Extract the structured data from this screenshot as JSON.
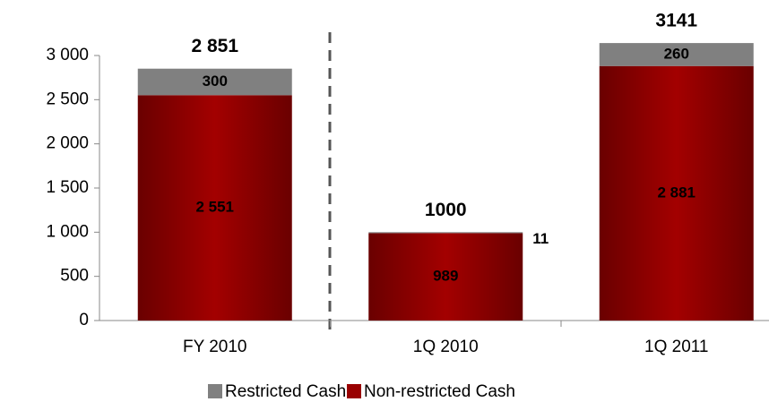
{
  "chart_data": {
    "type": "stacked_bar",
    "categories": [
      "FY 2010",
      "1Q 2010",
      "1Q 2011"
    ],
    "series": [
      {
        "name": "Restricted Cash",
        "color": "#808080",
        "values": [
          300,
          11,
          260
        ]
      },
      {
        "name": "Non-restricted Cash",
        "color": "#990000",
        "values": [
          2551,
          989,
          2881
        ],
        "value_labels": [
          "2 551",
          "989",
          "2 881"
        ]
      }
    ],
    "total_labels": [
      "2 851",
      "1000",
      "3141"
    ],
    "ylim": [
      0,
      3000
    ],
    "yticks": [
      0,
      500,
      {
        "value": 1000,
        "label": "1 000"
      },
      {
        "value": 1500,
        "label": "1 500"
      },
      {
        "value": 2000,
        "label": "2 000"
      },
      {
        "value": 2500,
        "label": "2 500"
      },
      {
        "value": 3000,
        "label": "3 000"
      }
    ],
    "legend": "bottom"
  }
}
